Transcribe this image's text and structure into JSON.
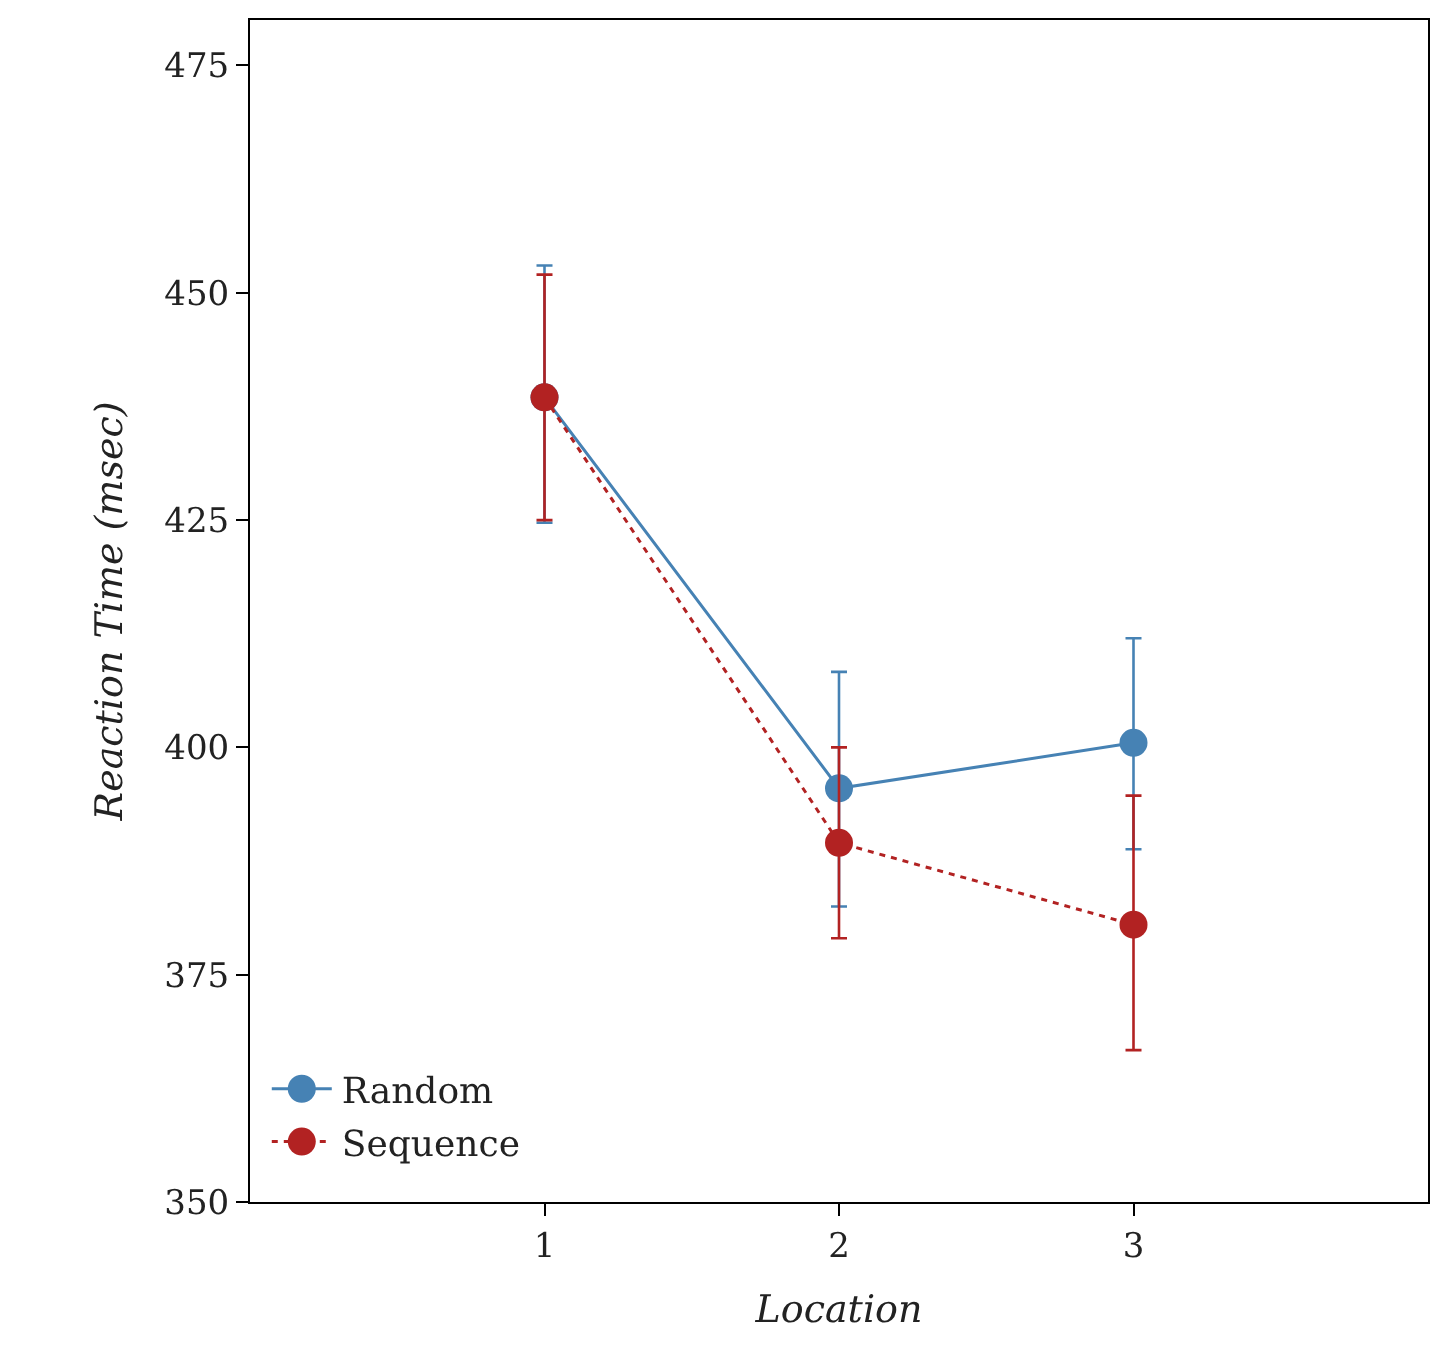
{
  "chart_data": {
    "type": "line",
    "xlabel": "Location",
    "ylabel": "Reaction Time (msec)",
    "x": [
      1,
      2,
      3
    ],
    "xlim": [
      0,
      4
    ],
    "xticks": [
      1,
      2,
      3
    ],
    "ylim": [
      350,
      480
    ],
    "yticks": [
      350,
      375,
      400,
      425,
      450,
      475
    ],
    "legend": "bottom left",
    "marker": "circle",
    "series": [
      {
        "name": "Random",
        "color": "#4682b4",
        "line_style": "solid",
        "values": [
          438.5,
          395.5,
          400.5
        ],
        "errors": [
          [
            424.7,
            453
          ],
          [
            382.5,
            408.3
          ],
          [
            388.8,
            412
          ]
        ]
      },
      {
        "name": "Sequence",
        "color": "#b22222",
        "line_style": "dotted",
        "values": [
          438.5,
          389.5,
          380.5
        ],
        "errors": [
          [
            425,
            452
          ],
          [
            379,
            400
          ],
          [
            366.7,
            394.7
          ]
        ]
      }
    ]
  }
}
